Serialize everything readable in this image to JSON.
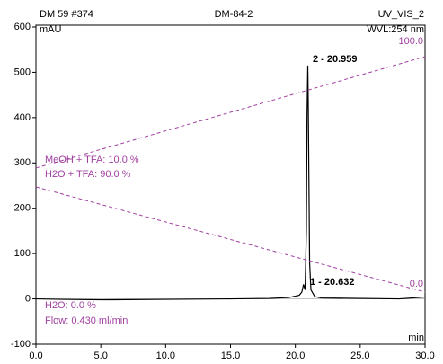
{
  "chart_data": {
    "type": "line",
    "header": {
      "left": "DM 59 #374",
      "center": "DM-84-2",
      "right": "UV_VIS_2"
    },
    "y_unit": "mAU",
    "wavelength": "WVL:254 nm",
    "x_unit": "min",
    "xlim": [
      0,
      30
    ],
    "ylim": [
      -100,
      600
    ],
    "xticks": [
      {
        "value": 0,
        "label": "0.0"
      },
      {
        "value": 5,
        "label": "5.0"
      },
      {
        "value": 10,
        "label": "10.0"
      },
      {
        "value": 15,
        "label": "15.0"
      },
      {
        "value": 20,
        "label": "20.0"
      },
      {
        "value": 25,
        "label": "25.0"
      },
      {
        "value": 30,
        "label": "30.0"
      }
    ],
    "yticks": [
      -100,
      0,
      100,
      200,
      300,
      400,
      500,
      600
    ],
    "y2lim": [
      -22.6,
      108.1
    ],
    "y2ticks": [
      {
        "value": 0,
        "label": "0.0"
      },
      {
        "value": 100,
        "label": "100.0"
      }
    ],
    "series": [
      {
        "color": "#000000",
        "x": [
          0,
          2,
          5,
          10,
          15,
          18,
          19.5,
          20.3,
          20.5,
          20.632,
          20.75,
          20.85,
          20.9,
          20.959,
          21.0,
          21.05,
          21.1,
          21.2,
          21.5,
          22,
          25,
          28,
          30
        ],
        "values": [
          0,
          -1,
          -2,
          -1,
          0,
          1,
          3,
          8,
          15,
          32,
          20,
          150,
          400,
          515,
          420,
          250,
          80,
          20,
          5,
          2,
          1,
          0,
          4
        ]
      },
      {
        "color": "#a040a0",
        "axis": "y2",
        "dashed": true,
        "x": [
          0,
          30
        ],
        "values": [
          50,
          95.9
        ]
      },
      {
        "color": "#a040a0",
        "axis": "y2",
        "dashed": true,
        "x": [
          0,
          30
        ],
        "values": [
          42.2,
          -1.1
        ]
      }
    ],
    "peak_labels": [
      "2 - 20.959",
      "1 - 20.632"
    ],
    "gradient_labels": [
      "MeOH + TFA: 10.0 %",
      "H2O + TFA: 90.0 %",
      "H2O: 0.0 %",
      "Flow: 0.430 ml/min"
    ],
    "label_color": "#a040a0"
  }
}
